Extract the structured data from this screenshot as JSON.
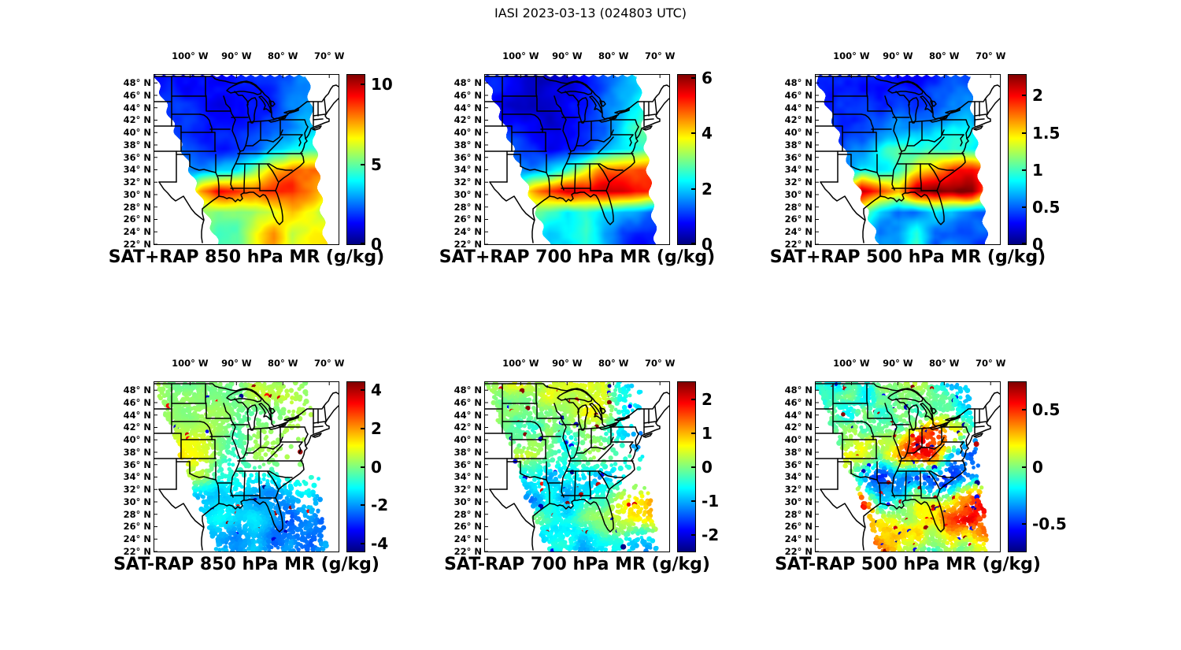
{
  "figure": {
    "title": "IASI 2023-03-13 (024803 UTC)"
  },
  "chart_data": {
    "type": "heatmap",
    "title": "IASI 2023-03-13 (024803 UTC)",
    "colormap": {
      "name": "jet",
      "stops": [
        "#000080",
        "#0000ff",
        "#00ffff",
        "#ffff00",
        "#ff0000",
        "#800000"
      ]
    },
    "axes": {
      "lon_tick_labels": [
        "100° W",
        "90° W",
        "80° W",
        "70° W"
      ],
      "lon_tick_values": [
        100,
        90,
        80,
        70
      ],
      "lat_tick_labels": [
        "48° N",
        "46° N",
        "44° N",
        "42° N",
        "40° N",
        "38° N",
        "36° N",
        "34° N",
        "32° N",
        "30° N",
        "28° N",
        "26° N",
        "24° N",
        "22° N"
      ],
      "lat_tick_values": [
        48,
        46,
        44,
        42,
        40,
        38,
        36,
        34,
        32,
        30,
        28,
        26,
        24,
        22
      ],
      "lon_range_deg_west": [
        107.7,
        68.0
      ],
      "lat_range_deg_north": [
        22.0,
        49.3
      ],
      "grid": false
    },
    "swath_polygon_uv": {
      "top_left_u": 0.0,
      "bottom_left_u": 0.345,
      "top_right_u": 0.83,
      "bottom_right_u": 0.93
    },
    "panels": [
      {
        "id": "sat-plus-rap-850",
        "title": "SAT+RAP 850 hPa MR (g/kg)",
        "row": 0,
        "col": 0,
        "style": "filled-swath",
        "colorbar": {
          "min": 0,
          "max": 10.6,
          "ticks": [
            0,
            5,
            10
          ]
        },
        "noise": 0.07,
        "outlier_prob": 0,
        "seed": 11,
        "values": [
          [
            1.5,
            1.3,
            1.2,
            1.2,
            1.3,
            1.5,
            1.8,
            2.2,
            2.5,
            2.8
          ],
          [
            1.6,
            1.4,
            1.2,
            1.2,
            1.4,
            1.6,
            2.0,
            2.4,
            2.8,
            3.0
          ],
          [
            2.0,
            1.7,
            1.5,
            1.5,
            1.6,
            1.8,
            2.2,
            2.8,
            3.2,
            3.4
          ],
          [
            2.4,
            2.2,
            1.8,
            1.7,
            1.8,
            2.2,
            3.0,
            4.0,
            4.5,
            4.2
          ],
          [
            3.0,
            2.6,
            2.6,
            3.0,
            3.6,
            5.0,
            7.0,
            8.2,
            8.2,
            7.6
          ],
          [
            3.5,
            4.5,
            7.6,
            9.2,
            8.6,
            8.0,
            8.6,
            8.8,
            8.0,
            7.0
          ],
          [
            4.0,
            5.0,
            5.5,
            5.0,
            4.8,
            5.2,
            6.0,
            7.0,
            6.5,
            6.0
          ],
          [
            4.5,
            5.0,
            5.2,
            4.8,
            5.0,
            6.5,
            7.5,
            6.0,
            6.8,
            7.2
          ]
        ],
        "coverage": null
      },
      {
        "id": "sat-plus-rap-700",
        "title": "SAT+RAP 700 hPa MR (g/kg)",
        "row": 0,
        "col": 1,
        "style": "filled-swath",
        "colorbar": {
          "min": 0,
          "max": 6.1,
          "ticks": [
            0,
            2,
            4,
            6
          ]
        },
        "noise": 0.07,
        "outlier_prob": 0,
        "seed": 22,
        "values": [
          [
            0.9,
            0.7,
            0.6,
            0.6,
            0.7,
            0.9,
            1.4,
            1.8,
            2.2,
            2.4
          ],
          [
            0.9,
            0.7,
            0.6,
            0.6,
            0.8,
            1.0,
            1.6,
            2.0,
            2.4,
            2.6
          ],
          [
            1.1,
            0.9,
            0.7,
            0.7,
            0.8,
            1.0,
            1.4,
            2.4,
            3.0,
            2.6
          ],
          [
            1.6,
            1.2,
            0.9,
            0.8,
            0.9,
            1.2,
            1.8,
            2.2,
            2.6,
            3.0
          ],
          [
            2.0,
            1.8,
            1.6,
            2.0,
            2.6,
            3.6,
            4.6,
            5.0,
            5.2,
            5.0
          ],
          [
            2.0,
            2.4,
            4.2,
            5.2,
            5.6,
            5.4,
            5.6,
            5.6,
            5.4,
            5.0
          ],
          [
            1.8,
            2.2,
            2.8,
            2.6,
            2.2,
            2.6,
            2.2,
            1.8,
            1.6,
            1.4
          ],
          [
            1.6,
            2.0,
            2.4,
            2.0,
            2.2,
            2.6,
            1.8,
            1.2,
            1.0,
            0.9
          ]
        ],
        "coverage": null
      },
      {
        "id": "sat-plus-rap-500",
        "title": "SAT+RAP 500 hPa MR (g/kg)",
        "row": 0,
        "col": 2,
        "style": "filled-swath",
        "colorbar": {
          "min": 0,
          "max": 2.28,
          "ticks": [
            0,
            0.5,
            1,
            1.5,
            2
          ]
        },
        "noise": 0.09,
        "outlier_prob": 0,
        "seed": 33,
        "values": [
          [
            0.32,
            0.28,
            0.25,
            0.28,
            0.3,
            0.35,
            0.45,
            0.55,
            0.5,
            0.45
          ],
          [
            0.32,
            0.28,
            0.3,
            0.32,
            0.38,
            0.4,
            0.45,
            0.55,
            0.6,
            0.5
          ],
          [
            0.4,
            0.35,
            0.4,
            0.5,
            0.55,
            0.5,
            0.7,
            0.8,
            0.7,
            0.6
          ],
          [
            0.5,
            0.45,
            0.55,
            0.8,
            1.0,
            0.9,
            0.8,
            0.9,
            0.85,
            0.8
          ],
          [
            0.55,
            0.6,
            0.9,
            0.85,
            1.0,
            1.3,
            1.6,
            1.9,
            2.0,
            1.9
          ],
          [
            0.5,
            1.4,
            2.2,
            1.9,
            1.6,
            2.2,
            2.3,
            2.25,
            2.2,
            1.6
          ],
          [
            0.4,
            0.8,
            1.2,
            0.8,
            0.55,
            0.65,
            0.85,
            0.6,
            0.5,
            0.45
          ],
          [
            0.35,
            0.55,
            0.85,
            0.55,
            0.65,
            0.95,
            0.55,
            0.45,
            0.4,
            0.38
          ]
        ],
        "coverage": null
      },
      {
        "id": "sat-minus-rap-850",
        "title": "SAT-RAP 850 hPa MR (g/kg)",
        "row": 1,
        "col": 0,
        "style": "scatter-dots",
        "colorbar": {
          "min": -4.4,
          "max": 4.4,
          "ticks": [
            -4,
            -2,
            0,
            2,
            4
          ]
        },
        "noise": 0.1,
        "outlier_prob": 0.012,
        "seed": 44,
        "values": [
          [
            0.3,
            0.2,
            0.3,
            0.3,
            0.2,
            0.3,
            0.3,
            0.2,
            0.2,
            0.3
          ],
          [
            0.4,
            0.3,
            0.2,
            0.3,
            0.2,
            0.3,
            0.2,
            0.3,
            0.2,
            0.2
          ],
          [
            0.6,
            0.4,
            0.3,
            0.2,
            -0.4,
            0.2,
            0.3,
            0.2,
            0.3,
            0.2
          ],
          [
            1.0,
            1.1,
            0.4,
            0.2,
            -0.6,
            0.2,
            0.3,
            0.2,
            0.2,
            0.3
          ],
          [
            0.6,
            0.4,
            0.2,
            -0.8,
            -1.0,
            -0.6,
            -0.6,
            -1.0,
            -0.8,
            -1.2
          ],
          [
            -0.8,
            -1.4,
            -2.0,
            -1.6,
            -1.2,
            -1.6,
            -2.0,
            -1.8,
            -1.4,
            -2.2
          ],
          [
            -1.6,
            -2.0,
            -1.2,
            -1.0,
            -1.4,
            -1.2,
            -2.2,
            -2.4,
            -1.8,
            -2.6
          ],
          [
            -2.0,
            -1.6,
            -1.2,
            -1.6,
            -2.0,
            -1.4,
            -2.2,
            -1.8,
            -2.4,
            -2.0
          ]
        ],
        "coverage": [
          [
            0.95,
            0.95,
            0.9,
            0.85,
            0.8,
            0.75,
            0.6,
            0.5,
            0.3,
            0.1
          ],
          [
            0.95,
            0.95,
            0.9,
            0.7,
            0.5,
            0.4,
            0.35,
            0.3,
            0.15,
            0.05
          ],
          [
            0.95,
            0.95,
            0.8,
            0.5,
            0.4,
            0.3,
            0.2,
            0.1,
            0.05,
            0
          ],
          [
            0.9,
            0.9,
            0.7,
            0.5,
            0.4,
            0.3,
            0.15,
            0.05,
            0,
            0
          ],
          [
            0.3,
            0.5,
            0.4,
            0.35,
            0.4,
            0.3,
            0.25,
            0.1,
            0.05,
            0
          ],
          [
            0,
            0.4,
            0.9,
            0.95,
            0.95,
            0.9,
            0.85,
            0.7,
            0.5,
            0.3
          ],
          [
            0,
            0.5,
            0.95,
            0.95,
            0.95,
            0.95,
            0.95,
            0.9,
            0.85,
            0.7
          ],
          [
            0,
            0.4,
            0.9,
            0.95,
            0.95,
            0.95,
            0.9,
            0.9,
            0.8,
            0.6
          ]
        ]
      },
      {
        "id": "sat-minus-rap-700",
        "title": "SAT-RAP 700 hPa MR (g/kg)",
        "row": 1,
        "col": 1,
        "style": "scatter-dots",
        "colorbar": {
          "min": -2.5,
          "max": 2.5,
          "ticks": [
            -2,
            -1,
            0,
            1,
            2
          ]
        },
        "noise": 0.17,
        "outlier_prob": 0.03,
        "seed": 55,
        "values": [
          [
            0.2,
            0.15,
            0.2,
            0.3,
            0.25,
            0.2,
            0.3,
            -0.3,
            -0.5,
            -0.6
          ],
          [
            0.2,
            0.2,
            0.15,
            0.2,
            0.25,
            0.3,
            0.2,
            -0.6,
            -1.0,
            -1.4
          ],
          [
            0.5,
            0.3,
            0.2,
            0.2,
            -0.3,
            0.2,
            -0.8,
            -1.2,
            -1.6,
            -1.0
          ],
          [
            0.9,
            0.6,
            0.3,
            0.2,
            -0.5,
            0.3,
            0.2,
            -0.6,
            -0.8,
            -0.5
          ],
          [
            0.8,
            0.3,
            -0.6,
            -0.9,
            -0.8,
            -0.9,
            -1.1,
            -0.9,
            -0.6,
            -0.8
          ],
          [
            -0.6,
            -0.9,
            -1.2,
            -0.6,
            -0.9,
            -0.6,
            -0.3,
            0.3,
            0.6,
            0.9
          ],
          [
            -0.8,
            -0.6,
            -0.3,
            0.2,
            -0.6,
            -0.3,
            0.2,
            0.5,
            0.3,
            1.1
          ],
          [
            -0.7,
            -0.9,
            -1.1,
            -0.5,
            -0.9,
            -1.2,
            -0.6,
            -0.3,
            -0.8,
            -0.5
          ]
        ],
        "coverage": [
          [
            0.9,
            0.85,
            0.9,
            0.9,
            0.85,
            0.8,
            0.7,
            0.6,
            0.4,
            0.2
          ],
          [
            0.9,
            0.9,
            0.85,
            0.8,
            0.7,
            0.5,
            0.4,
            0.35,
            0.25,
            0.1
          ],
          [
            0.9,
            0.9,
            0.8,
            0.6,
            0.5,
            0.4,
            0.3,
            0.2,
            0.1,
            0.05
          ],
          [
            0.85,
            0.85,
            0.7,
            0.5,
            0.45,
            0.35,
            0.25,
            0.1,
            0.05,
            0
          ],
          [
            0.4,
            0.6,
            0.5,
            0.45,
            0.5,
            0.4,
            0.35,
            0.2,
            0.1,
            0
          ],
          [
            0,
            0.4,
            0.85,
            0.9,
            0.9,
            0.85,
            0.8,
            0.75,
            0.6,
            0.4
          ],
          [
            0,
            0.5,
            0.9,
            0.95,
            0.95,
            0.9,
            0.9,
            0.85,
            0.8,
            0.7
          ],
          [
            0,
            0.4,
            0.85,
            0.9,
            0.9,
            0.9,
            0.85,
            0.85,
            0.75,
            0.55
          ]
        ]
      },
      {
        "id": "sat-minus-rap-500",
        "title": "SAT-RAP 500 hPa MR (g/kg)",
        "row": 1,
        "col": 2,
        "style": "scatter-dots",
        "colorbar": {
          "min": -0.74,
          "max": 0.74,
          "ticks": [
            -0.5,
            0,
            0.5
          ]
        },
        "noise": 0.26,
        "outlier_prob": 0.04,
        "seed": 66,
        "values": [
          [
            0.04,
            0.02,
            0.05,
            0.08,
            0.05,
            0.02,
            -0.15,
            -0.3,
            -0.35,
            -0.25
          ],
          [
            0.05,
            0.04,
            0.02,
            0.05,
            0.08,
            0.1,
            0.05,
            -0.2,
            -0.3,
            -0.2
          ],
          [
            0.08,
            0.05,
            0.05,
            0.08,
            0.12,
            0.3,
            0.45,
            0.25,
            -0.15,
            -0.2
          ],
          [
            0.12,
            0.1,
            0.15,
            -0.1,
            0.35,
            0.5,
            0.3,
            -0.25,
            -0.3,
            -0.25
          ],
          [
            0.1,
            0.15,
            -0.3,
            -0.45,
            -0.35,
            -0.25,
            -0.4,
            -0.45,
            -0.3,
            -0.2
          ],
          [
            0.1,
            0.35,
            0.45,
            -0.3,
            -0.25,
            0.15,
            0.1,
            0.2,
            0.35,
            0.45
          ],
          [
            0.15,
            0.45,
            0.25,
            0.15,
            0.1,
            0.15,
            0.25,
            0.35,
            0.45,
            0.35
          ],
          [
            0.2,
            0.35,
            0.55,
            0.25,
            0.15,
            0.2,
            0.15,
            0.25,
            0.2,
            0.25
          ]
        ],
        "coverage": [
          [
            0.95,
            0.9,
            0.95,
            0.95,
            0.9,
            0.9,
            0.85,
            0.8,
            0.6,
            0.4
          ],
          [
            0.95,
            0.95,
            0.9,
            0.9,
            0.85,
            0.8,
            0.7,
            0.6,
            0.5,
            0.3
          ],
          [
            0.95,
            0.95,
            0.9,
            0.8,
            0.75,
            0.7,
            0.6,
            0.5,
            0.35,
            0.2
          ],
          [
            0.9,
            0.9,
            0.85,
            0.75,
            0.7,
            0.65,
            0.55,
            0.4,
            0.25,
            0.1
          ],
          [
            0.6,
            0.75,
            0.7,
            0.65,
            0.7,
            0.6,
            0.55,
            0.4,
            0.3,
            0.15
          ],
          [
            0.1,
            0.5,
            0.9,
            0.9,
            0.9,
            0.85,
            0.85,
            0.8,
            0.7,
            0.5
          ],
          [
            0.05,
            0.55,
            0.9,
            0.95,
            0.95,
            0.9,
            0.9,
            0.9,
            0.85,
            0.75
          ],
          [
            0.05,
            0.45,
            0.9,
            0.9,
            0.9,
            0.9,
            0.85,
            0.85,
            0.8,
            0.6
          ]
        ]
      }
    ]
  }
}
